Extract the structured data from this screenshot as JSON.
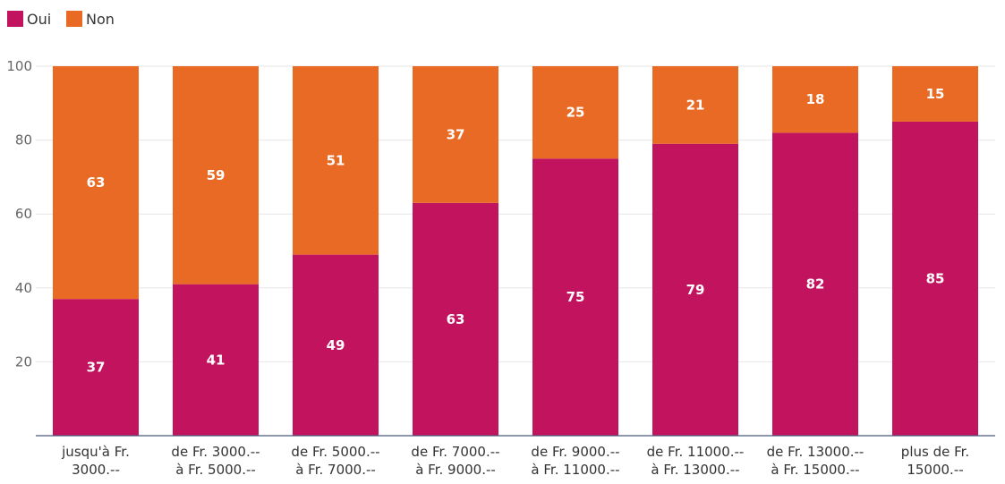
{
  "chart_data": {
    "type": "bar",
    "stacked": true,
    "orientation": "vertical",
    "categories": [
      [
        "jusqu'à Fr.",
        "3000.--"
      ],
      [
        "de Fr. 3000.--",
        "à Fr. 5000.--"
      ],
      [
        "de Fr. 5000.--",
        "à Fr. 7000.--"
      ],
      [
        "de Fr. 7000.--",
        "à Fr. 9000.--"
      ],
      [
        "de Fr. 9000.--",
        "à Fr. 11000.--"
      ],
      [
        "de Fr. 11000.--",
        "à Fr. 13000.--"
      ],
      [
        "de Fr. 13000.--",
        "à Fr. 15000.--"
      ],
      [
        "plus de Fr.",
        "15000.--"
      ]
    ],
    "series": [
      {
        "name": "Oui",
        "color": "#c2135e",
        "values": [
          37,
          41,
          49,
          63,
          75,
          79,
          82,
          85
        ]
      },
      {
        "name": "Non",
        "color": "#e86a24",
        "values": [
          63,
          59,
          51,
          37,
          25,
          21,
          18,
          15
        ]
      }
    ],
    "ylim": [
      0,
      100
    ],
    "yticks": [
      20,
      40,
      60,
      80,
      100
    ],
    "grid": true,
    "legend_position": "top-left",
    "data_labels": true,
    "title": "",
    "xlabel": "",
    "ylabel": ""
  }
}
